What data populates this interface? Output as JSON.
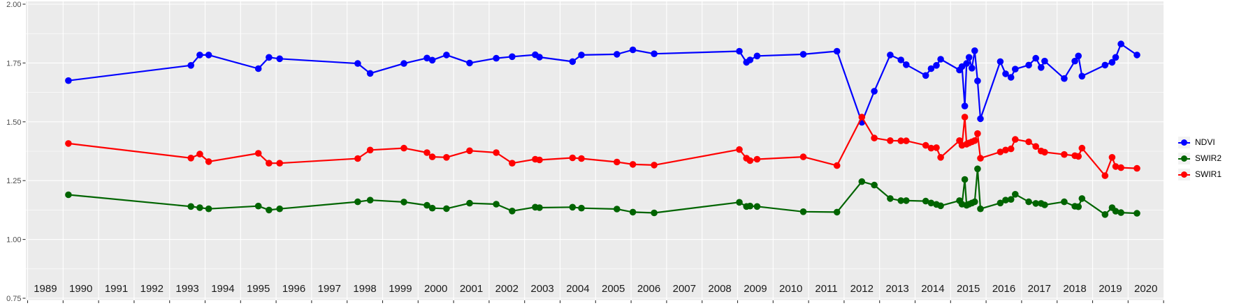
{
  "chart_data": {
    "type": "line",
    "title": "",
    "xlabel": "",
    "ylabel": "",
    "xlim": [
      1988.95,
      2021.05
    ],
    "ylim": [
      0.744,
      2.012
    ],
    "y_tick_values": [
      2.0,
      1.75,
      1.5,
      1.25,
      1.0,
      0.75
    ],
    "y_tick_labels": [
      "2.00",
      "1.75",
      "1.50",
      "1.25",
      "1.00",
      "0.75"
    ],
    "y_minor_values": [
      1.875,
      1.625,
      1.375,
      1.125,
      0.875
    ],
    "x_tick_labels": [
      "1989",
      "1990",
      "1991",
      "1992",
      "1993",
      "1994",
      "1995",
      "1996",
      "1997",
      "1998",
      "1999",
      "2000",
      "2001",
      "2002",
      "2003",
      "2004",
      "2005",
      "2006",
      "2007",
      "2008",
      "2009",
      "2010",
      "2011",
      "2012",
      "2013",
      "2014",
      "2015",
      "2016",
      "2017",
      "2018",
      "2019",
      "2020"
    ],
    "grid": true,
    "legend_position": "right",
    "panel_bg": "#EBEBEB",
    "grid_color": "#FFFFFF",
    "axis_text_color": "#4D4D4D",
    "x_label_color": "#1A1A1A",
    "tick_mark_color": "#333333",
    "x": [
      1990.15,
      1993.6,
      1993.85,
      1994.1,
      1995.5,
      1995.8,
      1996.1,
      1998.3,
      1998.65,
      1999.6,
      2000.25,
      2000.4,
      2000.8,
      2001.45,
      2002.2,
      2002.65,
      2003.3,
      2003.42,
      2004.35,
      2004.6,
      2005.6,
      2006.05,
      2006.65,
      2009.05,
      2009.25,
      2009.35,
      2009.55,
      2010.85,
      2011.8,
      2012.5,
      2012.85,
      2013.3,
      2013.6,
      2013.75,
      2014.3,
      2014.45,
      2014.6,
      2014.72,
      2015.25,
      2015.32,
      2015.4,
      2015.45,
      2015.52,
      2015.6,
      2015.68,
      2015.76,
      2015.84,
      2016.4,
      2016.55,
      2016.7,
      2016.82,
      2017.2,
      2017.4,
      2017.55,
      2017.65,
      2018.2,
      2018.5,
      2018.6,
      2018.7,
      2019.35,
      2019.55,
      2019.65,
      2019.8,
      2020.25
    ],
    "series": [
      {
        "name": "NDVI",
        "color": "#0000FF",
        "values": [
          1.675,
          1.74,
          1.784,
          1.784,
          1.726,
          1.774,
          1.768,
          1.748,
          1.706,
          1.748,
          1.771,
          1.762,
          1.784,
          1.75,
          1.77,
          1.777,
          1.785,
          1.775,
          1.756,
          1.784,
          1.787,
          1.806,
          1.789,
          1.8,
          1.753,
          1.763,
          1.78,
          1.787,
          1.8,
          1.498,
          1.63,
          1.784,
          1.763,
          1.743,
          1.697,
          1.726,
          1.74,
          1.766,
          1.72,
          1.735,
          1.567,
          1.748,
          1.774,
          1.728,
          1.802,
          1.674,
          1.513,
          1.756,
          1.704,
          1.689,
          1.724,
          1.741,
          1.77,
          1.731,
          1.758,
          1.684,
          1.758,
          1.78,
          1.694,
          1.741,
          1.753,
          1.774,
          1.831,
          1.784
        ]
      },
      {
        "name": "SWIR2",
        "color": "#006400",
        "values": [
          1.19,
          1.14,
          1.135,
          1.13,
          1.142,
          1.125,
          1.13,
          1.16,
          1.167,
          1.159,
          1.145,
          1.133,
          1.131,
          1.154,
          1.15,
          1.121,
          1.137,
          1.135,
          1.137,
          1.133,
          1.129,
          1.116,
          1.113,
          1.158,
          1.14,
          1.142,
          1.14,
          1.118,
          1.116,
          1.246,
          1.231,
          1.174,
          1.165,
          1.165,
          1.163,
          1.155,
          1.149,
          1.143,
          1.165,
          1.15,
          1.255,
          1.145,
          1.15,
          1.155,
          1.16,
          1.3,
          1.13,
          1.155,
          1.167,
          1.17,
          1.192,
          1.16,
          1.153,
          1.153,
          1.147,
          1.16,
          1.141,
          1.139,
          1.174,
          1.106,
          1.135,
          1.12,
          1.114,
          1.111
        ]
      },
      {
        "name": "SWIR1",
        "color": "#FF0000",
        "values": [
          1.408,
          1.346,
          1.363,
          1.331,
          1.366,
          1.324,
          1.324,
          1.344,
          1.38,
          1.388,
          1.369,
          1.351,
          1.349,
          1.377,
          1.369,
          1.324,
          1.341,
          1.338,
          1.347,
          1.344,
          1.329,
          1.319,
          1.316,
          1.382,
          1.345,
          1.335,
          1.341,
          1.351,
          1.314,
          1.52,
          1.431,
          1.42,
          1.419,
          1.419,
          1.4,
          1.388,
          1.39,
          1.349,
          1.42,
          1.4,
          1.52,
          1.405,
          1.41,
          1.415,
          1.42,
          1.45,
          1.345,
          1.372,
          1.38,
          1.385,
          1.425,
          1.415,
          1.395,
          1.376,
          1.371,
          1.361,
          1.356,
          1.353,
          1.388,
          1.271,
          1.349,
          1.31,
          1.305,
          1.302
        ]
      }
    ]
  },
  "legend": {
    "items": [
      {
        "label": "NDVI",
        "color": "#0000FF"
      },
      {
        "label": "SWIR2",
        "color": "#006400"
      },
      {
        "label": "SWIR1",
        "color": "#FF0000"
      }
    ]
  }
}
